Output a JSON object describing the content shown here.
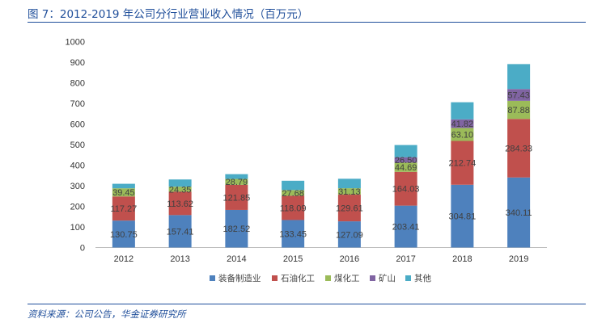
{
  "title": "图 7：2012-2019 年公司分行业营业收入情况（百万元）",
  "source": "资料来源：公司公告，华金证券研究所",
  "chart_data": {
    "type": "bar",
    "stacked": true,
    "title": "2012-2019 年公司分行业营业收入情况（百万元）",
    "xlabel": "",
    "ylabel": "",
    "ylim": [
      0,
      1000
    ],
    "yticks": [
      0,
      100,
      200,
      300,
      400,
      500,
      600,
      700,
      800,
      900,
      1000
    ],
    "legend_position": "bottom",
    "categories": [
      "2012",
      "2013",
      "2014",
      "2015",
      "2016",
      "2017",
      "2018",
      "2019"
    ],
    "series": [
      {
        "name": "装备制造业",
        "color": "#4e81bd",
        "values": [
          130.75,
          157.41,
          182.52,
          133.45,
          127.09,
          203.41,
          304.81,
          340.11
        ],
        "labels": [
          "130.75",
          "157.41",
          "182.52",
          "133.45",
          "127.09",
          "203.41",
          "304.81",
          "340.11"
        ]
      },
      {
        "name": "石油化工",
        "color": "#c0504d",
        "values": [
          117.27,
          113.62,
          121.85,
          118.09,
          129.61,
          164.03,
          212.74,
          284.33
        ],
        "labels": [
          "117.27",
          "113.62",
          "121.85",
          "118.09",
          "129.61",
          "164.03",
          "212.74",
          "284.33"
        ]
      },
      {
        "name": "煤化工",
        "color": "#9bbb59",
        "values": [
          39.45,
          24.35,
          28.79,
          27.68,
          31.13,
          44.69,
          63.1,
          87.88
        ],
        "labels": [
          "39.45",
          "24.35",
          "28.79",
          "27.68",
          "31.13",
          "44.69",
          "63.10",
          "87.88"
        ]
      },
      {
        "name": "矿山",
        "color": "#8064a2",
        "values": [
          0,
          0,
          0,
          0,
          0,
          26.5,
          41.82,
          57.43
        ],
        "labels": [
          "",
          "",
          "",
          "",
          "",
          "26.50",
          "41.82",
          "57.43"
        ]
      },
      {
        "name": "其他",
        "color": "#4bacc6",
        "values": [
          22,
          35,
          23,
          45,
          46,
          59,
          83,
          121
        ],
        "labels": [
          "",
          "",
          "",
          "",
          "",
          "",
          "",
          ""
        ]
      }
    ]
  }
}
